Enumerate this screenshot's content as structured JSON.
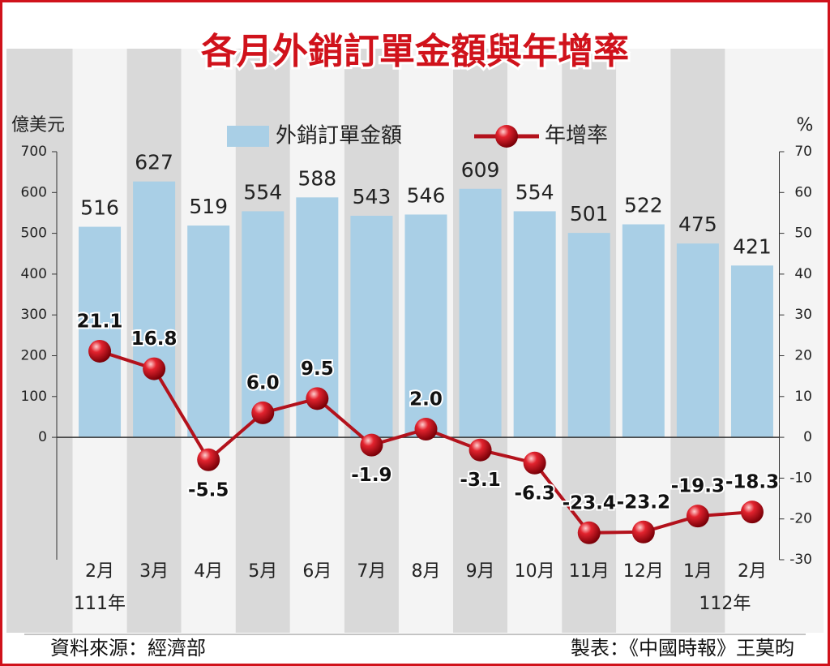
{
  "chart_data": {
    "type": "bar-line",
    "title": "各月外銷訂單金額與年增率",
    "y_label": "億美元",
    "y2_label": "%",
    "categories": [
      "2月",
      "3月",
      "4月",
      "5月",
      "6月",
      "7月",
      "8月",
      "9月",
      "10月",
      "11月",
      "12月",
      "1月",
      "2月"
    ],
    "annotations": [
      "111年",
      "112年"
    ],
    "series": [
      {
        "name": "外銷訂單金額",
        "type": "bar",
        "color": "#a9cfe6",
        "values": [
          516,
          627,
          519,
          554,
          588,
          543,
          546,
          609,
          554,
          501,
          522,
          475,
          421
        ]
      },
      {
        "name": "年增率",
        "type": "line",
        "axis": "y2",
        "color": "#b3121c",
        "values": [
          21.1,
          16.8,
          -5.5,
          6.0,
          9.5,
          -1.9,
          2.0,
          -3.1,
          -6.3,
          -23.4,
          -23.2,
          -19.3,
          -18.3
        ],
        "value_labels": [
          "21.1",
          "16.8",
          "-5.5",
          "6.0",
          "9.5",
          "-1.9",
          "2.0",
          "-3.1",
          "-6.3",
          "-23.4",
          "-23.2",
          "-19.3",
          "-18.3"
        ]
      }
    ],
    "ylim": [
      -300,
      700
    ],
    "yticks": [
      0,
      100,
      200,
      300,
      400,
      500,
      600,
      700
    ],
    "y2lim": [
      -30,
      70
    ],
    "y2ticks": [
      -30,
      -20,
      -10,
      0,
      10,
      20,
      30,
      40,
      50,
      60,
      70
    ],
    "source": "資料來源：經濟部",
    "credit": "製表：《中國時報》王莫昀"
  }
}
